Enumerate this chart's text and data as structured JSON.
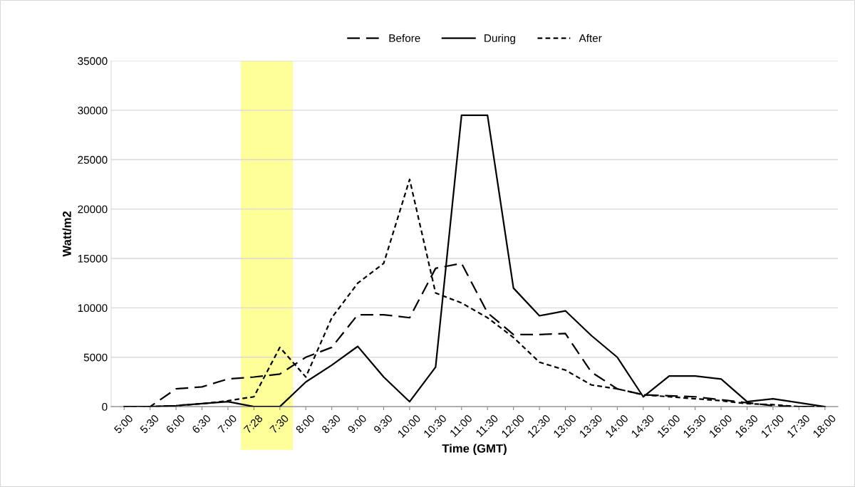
{
  "chart_data": {
    "type": "line",
    "xlabel": "Time (GMT)",
    "ylabel": "Watt/m2",
    "categories": [
      "5:00",
      "5:30",
      "6:00",
      "6:30",
      "7:00",
      "7:28",
      "7:30",
      "8:00",
      "8:30",
      "9:00",
      "9:30",
      "10:00",
      "10:30",
      "11:00",
      "11:30",
      "12:00",
      "12:30",
      "13:00",
      "13:30",
      "14:00",
      "14:30",
      "15:00",
      "15:30",
      "16:00",
      "16:30",
      "17:00",
      "17:30",
      "18:00"
    ],
    "series": [
      {
        "name": "Before",
        "color": "#000000",
        "line_style": "dashed",
        "values": [
          0,
          0,
          1800,
          2000,
          2800,
          3000,
          3300,
          5000,
          6000,
          9300,
          9300,
          9000,
          14000,
          14500,
          9500,
          7300,
          7300,
          7400,
          3500,
          1800,
          1200,
          1100,
          1000,
          700,
          400,
          100,
          0,
          0
        ]
      },
      {
        "name": "During",
        "color": "#000000",
        "line_style": "solid",
        "values": [
          0,
          0,
          100,
          300,
          500,
          0,
          0,
          2500,
          4200,
          6100,
          3000,
          500,
          4000,
          29500,
          29500,
          12000,
          9200,
          9700,
          7200,
          5000,
          1000,
          3100,
          3100,
          2800,
          500,
          800,
          400,
          0
        ]
      },
      {
        "name": "After",
        "color": "#000000",
        "line_style": "dotted",
        "values": [
          0,
          0,
          100,
          300,
          600,
          1000,
          6000,
          3000,
          9000,
          12500,
          14500,
          23000,
          11500,
          10500,
          9000,
          7000,
          4500,
          3700,
          2200,
          1800,
          1200,
          1000,
          800,
          600,
          300,
          200,
          0,
          0
        ]
      }
    ],
    "ylim": [
      0,
      35000
    ],
    "yticks": [
      0,
      5000,
      10000,
      15000,
      20000,
      25000,
      30000,
      35000
    ],
    "bands": [
      {
        "axis": "x",
        "from": "7:28",
        "to": "7:30",
        "color": "#ffff99"
      }
    ],
    "grid": "y",
    "legend": "top",
    "marker": "none"
  }
}
